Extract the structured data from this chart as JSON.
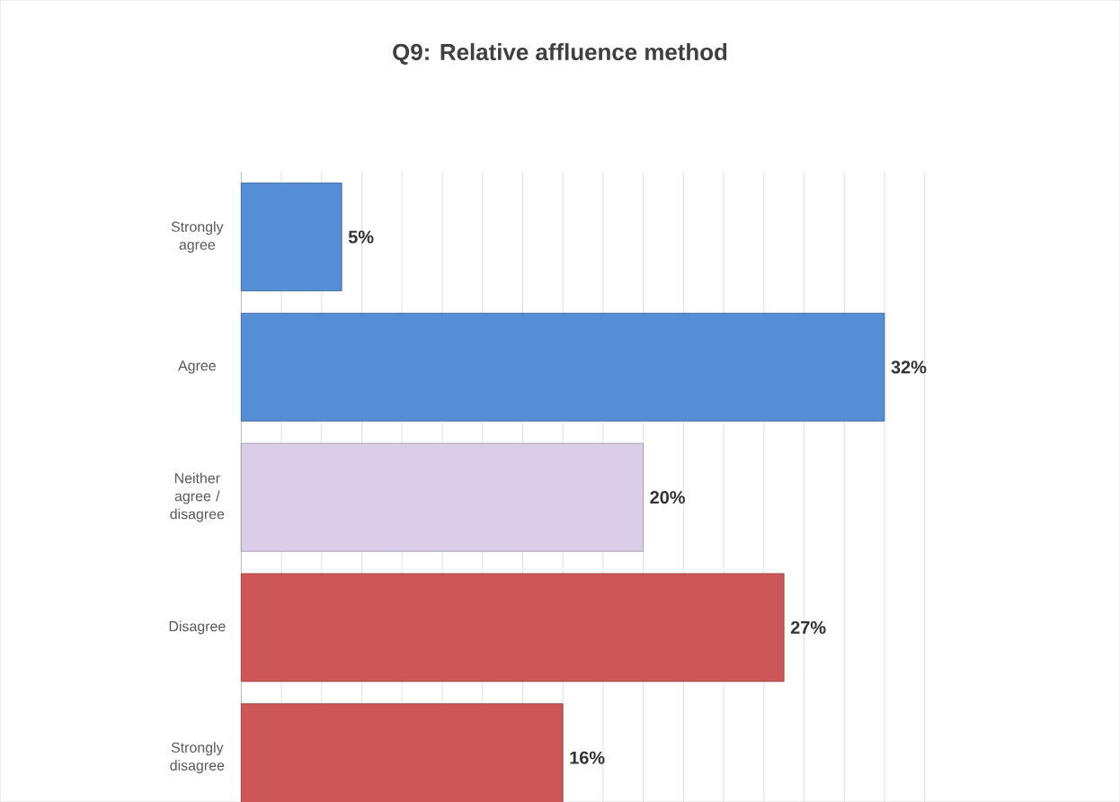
{
  "chart_data": {
    "type": "bar",
    "orientation": "horizontal",
    "title": "Q9:  Relative affluence method",
    "categories": [
      "Strongly agree",
      "Agree",
      "Neither agree / disagree",
      "Disagree",
      "Strongly disagree"
    ],
    "values": [
      5,
      32,
      20,
      27,
      16
    ],
    "value_labels": [
      "5%",
      "32%",
      "20%",
      "27%",
      "16%"
    ],
    "colors": [
      "#558ed5",
      "#558ed5",
      "#d9cde8",
      "#cd5656",
      "#cd5656"
    ],
    "tick_labels": "y",
    "grid": "x"
  }
}
